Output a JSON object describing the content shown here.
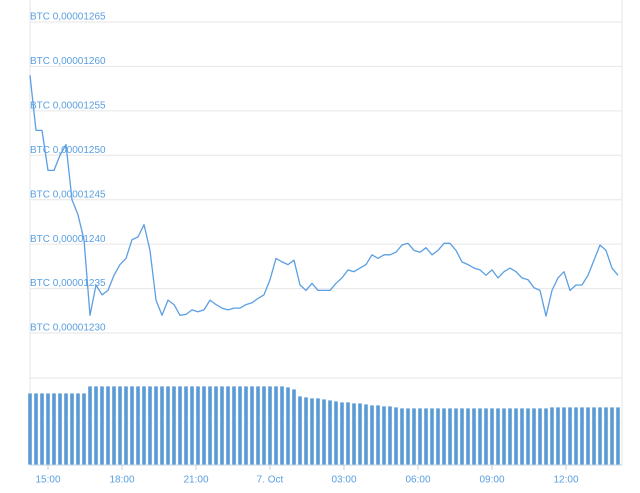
{
  "chart_data": {
    "type": "line",
    "color": "#5b9fe3",
    "grid": true,
    "ylim": [
      1.228e-05,
      1.267e-05
    ],
    "yticks": [
      {
        "value": 1.23e-05,
        "label": "BTC 0,00001230"
      },
      {
        "value": 1.235e-05,
        "label": "BTC 0,00001235"
      },
      {
        "value": 1.24e-05,
        "label": "BTC 0,00001240"
      },
      {
        "value": 1.245e-05,
        "label": "BTC 0,00001245"
      },
      {
        "value": 1.25e-05,
        "label": "BTC 0,00001250"
      },
      {
        "value": 1.255e-05,
        "label": "BTC 0,00001255"
      },
      {
        "value": 1.26e-05,
        "label": "BTC 0,00001260"
      },
      {
        "value": 1.265e-05,
        "label": "BTC 0,00001265"
      }
    ],
    "x_labels": [
      "15:00",
      "18:00",
      "21:00",
      "7. Oct",
      "03:00",
      "06:00",
      "09:00",
      "12:00"
    ],
    "values": [
      1.259e-05,
      1.2528e-05,
      1.2528e-05,
      1.2483e-05,
      1.2483e-05,
      1.25e-05,
      1.2512e-05,
      1.245e-05,
      1.2433e-05,
      1.2405e-05,
      1.232e-05,
      1.2354e-05,
      1.2343e-05,
      1.2348e-05,
      1.2365e-05,
      1.2377e-05,
      1.2384e-05,
      1.2405e-05,
      1.2408e-05,
      1.2422e-05,
      1.2393e-05,
      1.2337e-05,
      1.232e-05,
      1.2337e-05,
      1.2332e-05,
      1.232e-05,
      1.2321e-05,
      1.2326e-05,
      1.2324e-05,
      1.2326e-05,
      1.2337e-05,
      1.2332e-05,
      1.2328e-05,
      1.2326e-05,
      1.2328e-05,
      1.2328e-05,
      1.2332e-05,
      1.2334e-05,
      1.2339e-05,
      1.2343e-05,
      1.236e-05,
      1.2384e-05,
      1.238e-05,
      1.2377e-05,
      1.2382e-05,
      1.2354e-05,
      1.2348e-05,
      1.2356e-05,
      1.2348e-05,
      1.2348e-05,
      1.2348e-05,
      1.2356e-05,
      1.2362e-05,
      1.2371e-05,
      1.2369e-05,
      1.2373e-05,
      1.2377e-05,
      1.2388e-05,
      1.2384e-05,
      1.2388e-05,
      1.2388e-05,
      1.2391e-05,
      1.2399e-05,
      1.2401e-05,
      1.2393e-05,
      1.2391e-05,
      1.2396e-05,
      1.2388e-05,
      1.2393e-05,
      1.2401e-05,
      1.2401e-05,
      1.2393e-05,
      1.238e-05,
      1.2377e-05,
      1.2373e-05,
      1.2371e-05,
      1.2365e-05,
      1.2371e-05,
      1.2362e-05,
      1.2369e-05,
      1.2373e-05,
      1.2369e-05,
      1.2362e-05,
      1.236e-05,
      1.2351e-05,
      1.2348e-05,
      1.2319e-05,
      1.2348e-05,
      1.2362e-05,
      1.2369e-05,
      1.2348e-05,
      1.2354e-05,
      1.2354e-05,
      1.2365e-05,
      1.2382e-05,
      1.2399e-05,
      1.2393e-05,
      1.2373e-05,
      1.2365e-05
    ],
    "volume": {
      "color": "#5b9bd5",
      "values": [
        72,
        72,
        72,
        72,
        72,
        72,
        72,
        72,
        72,
        72,
        79,
        79,
        79,
        79,
        79,
        79,
        79,
        79,
        79,
        79,
        79,
        79,
        79,
        79,
        79,
        79,
        79,
        79,
        79,
        79,
        79,
        79,
        79,
        79,
        79,
        79,
        79,
        79,
        79,
        79,
        79,
        79,
        79,
        78,
        76,
        69,
        68,
        67,
        67,
        66,
        65,
        64,
        63,
        63,
        62,
        62,
        61,
        60,
        60,
        59,
        59,
        58,
        57,
        57,
        57,
        57,
        57,
        57,
        57,
        57,
        57,
        57,
        57,
        57,
        57,
        57,
        57,
        57,
        57,
        57,
        57,
        57,
        57,
        57,
        57,
        57,
        57,
        58,
        58,
        58,
        58,
        58,
        58,
        58,
        58,
        58,
        58,
        58,
        58
      ]
    }
  }
}
